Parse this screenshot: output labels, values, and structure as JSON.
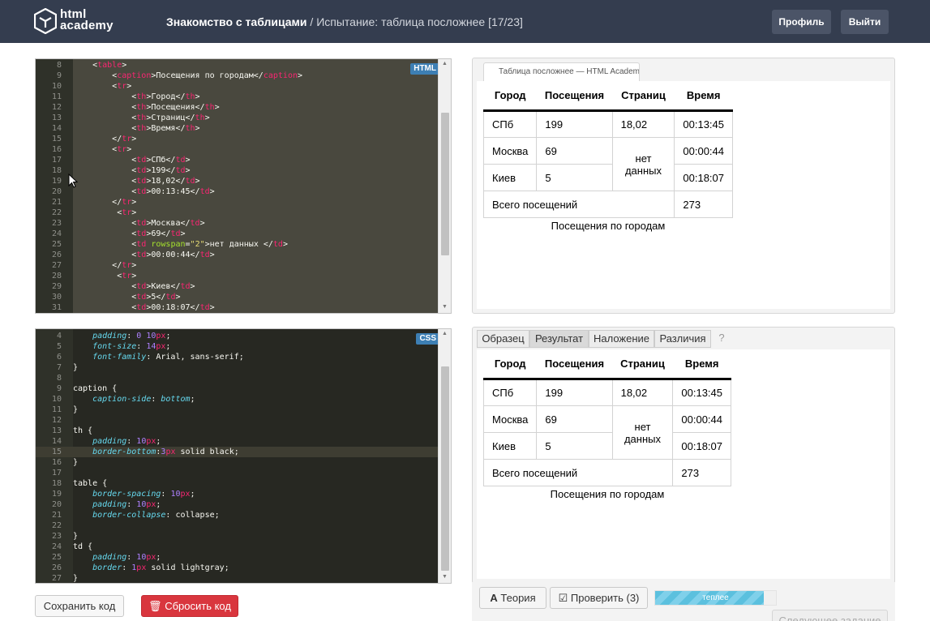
{
  "header": {
    "logo_line1": "html",
    "logo_line2": "academy",
    "course": "Знакомство с таблицами",
    "separator": " / ",
    "task": "Испытание: таблица посложнее",
    "progress": "[17/23]",
    "profile_label": "Профиль",
    "logout_label": "Выйти"
  },
  "html_editor": {
    "badge": "HTML",
    "lines": [
      {
        "n": "8",
        "indent": "    ",
        "parts": [
          [
            "p",
            "<"
          ],
          [
            "tag",
            "table"
          ],
          [
            "p",
            ">"
          ]
        ]
      },
      {
        "n": "9",
        "indent": "        ",
        "parts": [
          [
            "p",
            "<"
          ],
          [
            "tag",
            "caption"
          ],
          [
            "p",
            ">Посещения по городам</"
          ],
          [
            "tag",
            "caption"
          ],
          [
            "p",
            ">"
          ]
        ]
      },
      {
        "n": "10",
        "indent": "        ",
        "parts": [
          [
            "p",
            "<"
          ],
          [
            "tag",
            "tr"
          ],
          [
            "p",
            ">"
          ]
        ]
      },
      {
        "n": "11",
        "indent": "            ",
        "parts": [
          [
            "p",
            "<"
          ],
          [
            "tag",
            "th"
          ],
          [
            "p",
            ">Город</"
          ],
          [
            "tag",
            "th"
          ],
          [
            "p",
            ">"
          ]
        ]
      },
      {
        "n": "12",
        "indent": "            ",
        "parts": [
          [
            "p",
            "<"
          ],
          [
            "tag",
            "th"
          ],
          [
            "p",
            ">Посещения</"
          ],
          [
            "tag",
            "th"
          ],
          [
            "p",
            ">"
          ]
        ]
      },
      {
        "n": "13",
        "indent": "            ",
        "parts": [
          [
            "p",
            "<"
          ],
          [
            "tag",
            "th"
          ],
          [
            "p",
            ">Страниц</"
          ],
          [
            "tag",
            "th"
          ],
          [
            "p",
            ">"
          ]
        ]
      },
      {
        "n": "14",
        "indent": "            ",
        "parts": [
          [
            "p",
            "<"
          ],
          [
            "tag",
            "th"
          ],
          [
            "p",
            ">Время</"
          ],
          [
            "tag",
            "th"
          ],
          [
            "p",
            ">"
          ]
        ]
      },
      {
        "n": "15",
        "indent": "        ",
        "parts": [
          [
            "p",
            "</"
          ],
          [
            "tag",
            "tr"
          ],
          [
            "p",
            ">"
          ]
        ]
      },
      {
        "n": "16",
        "indent": "        ",
        "parts": [
          [
            "p",
            "<"
          ],
          [
            "tag",
            "tr"
          ],
          [
            "p",
            ">"
          ]
        ]
      },
      {
        "n": "17",
        "indent": "            ",
        "parts": [
          [
            "p",
            "<"
          ],
          [
            "tag",
            "td"
          ],
          [
            "p",
            ">СПб</"
          ],
          [
            "tag",
            "td"
          ],
          [
            "p",
            ">"
          ]
        ]
      },
      {
        "n": "18",
        "indent": "            ",
        "parts": [
          [
            "p",
            "<"
          ],
          [
            "tag",
            "td"
          ],
          [
            "p",
            ">199</"
          ],
          [
            "tag",
            "td"
          ],
          [
            "p",
            ">"
          ]
        ]
      },
      {
        "n": "19",
        "indent": "            ",
        "parts": [
          [
            "p",
            "<"
          ],
          [
            "tag",
            "td"
          ],
          [
            "p",
            ">18,02</"
          ],
          [
            "tag",
            "td"
          ],
          [
            "p",
            ">"
          ]
        ]
      },
      {
        "n": "20",
        "indent": "            ",
        "parts": [
          [
            "p",
            "<"
          ],
          [
            "tag",
            "td"
          ],
          [
            "p",
            ">00:13:45</"
          ],
          [
            "tag",
            "td"
          ],
          [
            "p",
            ">"
          ]
        ]
      },
      {
        "n": "21",
        "indent": "        ",
        "parts": [
          [
            "p",
            "</"
          ],
          [
            "tag",
            "tr"
          ],
          [
            "p",
            ">"
          ]
        ]
      },
      {
        "n": "22",
        "indent": "         ",
        "parts": [
          [
            "p",
            "<"
          ],
          [
            "tag",
            "tr"
          ],
          [
            "p",
            ">"
          ]
        ]
      },
      {
        "n": "23",
        "indent": "            ",
        "parts": [
          [
            "p",
            "<"
          ],
          [
            "tag",
            "td"
          ],
          [
            "p",
            ">Москва</"
          ],
          [
            "tag",
            "td"
          ],
          [
            "p",
            ">"
          ]
        ]
      },
      {
        "n": "24",
        "indent": "            ",
        "parts": [
          [
            "p",
            "<"
          ],
          [
            "tag",
            "td"
          ],
          [
            "p",
            ">69</"
          ],
          [
            "tag",
            "td"
          ],
          [
            "p",
            ">"
          ]
        ]
      },
      {
        "n": "25",
        "indent": "            ",
        "parts": [
          [
            "p",
            "<"
          ],
          [
            "tag",
            "td"
          ],
          [
            "p",
            " "
          ],
          [
            "attr",
            "rowspan"
          ],
          [
            "p",
            "="
          ],
          [
            "str",
            "\"2\""
          ],
          [
            "p",
            ">нет данных </"
          ],
          [
            "tag",
            "td"
          ],
          [
            "p",
            ">"
          ]
        ]
      },
      {
        "n": "26",
        "indent": "            ",
        "parts": [
          [
            "p",
            "<"
          ],
          [
            "tag",
            "td"
          ],
          [
            "p",
            ">00:00:44</"
          ],
          [
            "tag",
            "td"
          ],
          [
            "p",
            ">"
          ]
        ]
      },
      {
        "n": "27",
        "indent": "        ",
        "parts": [
          [
            "p",
            "</"
          ],
          [
            "tag",
            "tr"
          ],
          [
            "p",
            ">"
          ]
        ]
      },
      {
        "n": "28",
        "indent": "         ",
        "parts": [
          [
            "p",
            "<"
          ],
          [
            "tag",
            "tr"
          ],
          [
            "p",
            ">"
          ]
        ]
      },
      {
        "n": "29",
        "indent": "            ",
        "parts": [
          [
            "p",
            "<"
          ],
          [
            "tag",
            "td"
          ],
          [
            "p",
            ">Киев</"
          ],
          [
            "tag",
            "td"
          ],
          [
            "p",
            ">"
          ]
        ]
      },
      {
        "n": "30",
        "indent": "            ",
        "parts": [
          [
            "p",
            "<"
          ],
          [
            "tag",
            "td"
          ],
          [
            "p",
            ">5</"
          ],
          [
            "tag",
            "td"
          ],
          [
            "p",
            ">"
          ]
        ]
      },
      {
        "n": "31",
        "indent": "            ",
        "parts": [
          [
            "p",
            "<"
          ],
          [
            "tag",
            "td"
          ],
          [
            "p",
            ">00:18:07</"
          ],
          [
            "tag",
            "td"
          ],
          [
            "p",
            ">"
          ]
        ]
      }
    ]
  },
  "css_editor": {
    "badge": "CSS",
    "lines": [
      {
        "n": "4",
        "indent": "    ",
        "parts": [
          [
            "prop",
            "padding"
          ],
          [
            "p",
            ": "
          ],
          [
            "val",
            "0"
          ],
          [
            "p",
            " "
          ],
          [
            "val",
            "10"
          ],
          [
            "tag",
            "px"
          ],
          [
            "p",
            ";"
          ]
        ]
      },
      {
        "n": "5",
        "indent": "    ",
        "parts": [
          [
            "prop",
            "font-size"
          ],
          [
            "p",
            ": "
          ],
          [
            "val",
            "14"
          ],
          [
            "tag",
            "px"
          ],
          [
            "p",
            ";"
          ]
        ]
      },
      {
        "n": "6",
        "indent": "    ",
        "parts": [
          [
            "prop",
            "font-family"
          ],
          [
            "p",
            ": Arial, sans-serif;"
          ]
        ]
      },
      {
        "n": "7",
        "indent": "",
        "parts": [
          [
            "p",
            "}"
          ]
        ]
      },
      {
        "n": "8",
        "indent": "",
        "parts": [
          [
            "p",
            ""
          ]
        ]
      },
      {
        "n": "9",
        "indent": "",
        "parts": [
          [
            "p",
            "caption {"
          ]
        ]
      },
      {
        "n": "10",
        "indent": "    ",
        "parts": [
          [
            "prop",
            "caption-side"
          ],
          [
            "p",
            ": "
          ],
          [
            "prop",
            "bottom"
          ],
          [
            "p",
            ";"
          ]
        ]
      },
      {
        "n": "11",
        "indent": "",
        "parts": [
          [
            "p",
            "}"
          ]
        ]
      },
      {
        "n": "12",
        "indent": "",
        "parts": [
          [
            "p",
            ""
          ]
        ]
      },
      {
        "n": "13",
        "indent": "",
        "parts": [
          [
            "p",
            "th {"
          ]
        ]
      },
      {
        "n": "14",
        "indent": "    ",
        "parts": [
          [
            "prop",
            "padding"
          ],
          [
            "p",
            ": "
          ],
          [
            "val",
            "10"
          ],
          [
            "tag",
            "px"
          ],
          [
            "p",
            ";"
          ]
        ]
      },
      {
        "n": "15",
        "indent": "    ",
        "parts": [
          [
            "prop",
            "border-bottom"
          ],
          [
            "p",
            ":"
          ],
          [
            "val",
            "3"
          ],
          [
            "tag",
            "px"
          ],
          [
            "p",
            " solid black;"
          ]
        ],
        "hl": true
      },
      {
        "n": "16",
        "indent": "",
        "parts": [
          [
            "p",
            "}"
          ]
        ]
      },
      {
        "n": "17",
        "indent": "",
        "parts": [
          [
            "p",
            ""
          ]
        ]
      },
      {
        "n": "18",
        "indent": "",
        "parts": [
          [
            "p",
            "table {"
          ]
        ]
      },
      {
        "n": "19",
        "indent": "    ",
        "parts": [
          [
            "prop",
            "border-spacing"
          ],
          [
            "p",
            ": "
          ],
          [
            "val",
            "10"
          ],
          [
            "tag",
            "px"
          ],
          [
            "p",
            ";"
          ]
        ]
      },
      {
        "n": "20",
        "indent": "    ",
        "parts": [
          [
            "prop",
            "padding"
          ],
          [
            "p",
            ": "
          ],
          [
            "val",
            "10"
          ],
          [
            "tag",
            "px"
          ],
          [
            "p",
            ";"
          ]
        ]
      },
      {
        "n": "21",
        "indent": "    ",
        "parts": [
          [
            "prop",
            "border-collapse"
          ],
          [
            "p",
            ": collapse;"
          ]
        ]
      },
      {
        "n": "22",
        "indent": "",
        "parts": [
          [
            "p",
            ""
          ]
        ]
      },
      {
        "n": "23",
        "indent": "",
        "parts": [
          [
            "p",
            "}"
          ]
        ]
      },
      {
        "n": "24",
        "indent": "",
        "parts": [
          [
            "p",
            "td {"
          ]
        ]
      },
      {
        "n": "25",
        "indent": "    ",
        "parts": [
          [
            "prop",
            "padding"
          ],
          [
            "p",
            ": "
          ],
          [
            "val",
            "10"
          ],
          [
            "tag",
            "px"
          ],
          [
            "p",
            ";"
          ]
        ]
      },
      {
        "n": "26",
        "indent": "    ",
        "parts": [
          [
            "prop",
            "border"
          ],
          [
            "p",
            ": "
          ],
          [
            "val",
            "1"
          ],
          [
            "tag",
            "px"
          ],
          [
            "p",
            " solid lightgray;"
          ]
        ]
      },
      {
        "n": "27",
        "indent": "",
        "parts": [
          [
            "p",
            "}"
          ]
        ]
      }
    ]
  },
  "preview_top": {
    "browser_tab": "Таблица посложнее — HTML Academy"
  },
  "preview_tabs": [
    "Образец",
    "Результат",
    "Наложение",
    "Различия",
    "?"
  ],
  "active_tab": "Результат",
  "table": {
    "headers": [
      "Город",
      "Посещения",
      "Страниц",
      "Время"
    ],
    "rows": [
      [
        "СПб",
        "199",
        "18,02",
        "00:13:45"
      ],
      [
        "Москва",
        "69",
        "нет данных",
        "00:00:44"
      ],
      [
        "Киев",
        "5",
        "",
        "00:18:07"
      ]
    ],
    "total_label": "Всего посещений",
    "total_value": "273",
    "caption": "Посещения по городам"
  },
  "controls": {
    "save_label": "Сохранить код",
    "reset_label": "Сбросить код",
    "theory_label": "Теория",
    "check_label": "Проверить (3)",
    "progress_label": "теплее",
    "progress_fraction": 0.9,
    "next_label": "Следующее задание"
  },
  "colors": {
    "header_bg": "#343d4f",
    "editor_bg": "#272822",
    "reset_button": "#d9363e",
    "progress_fill": "#5bc0de"
  }
}
